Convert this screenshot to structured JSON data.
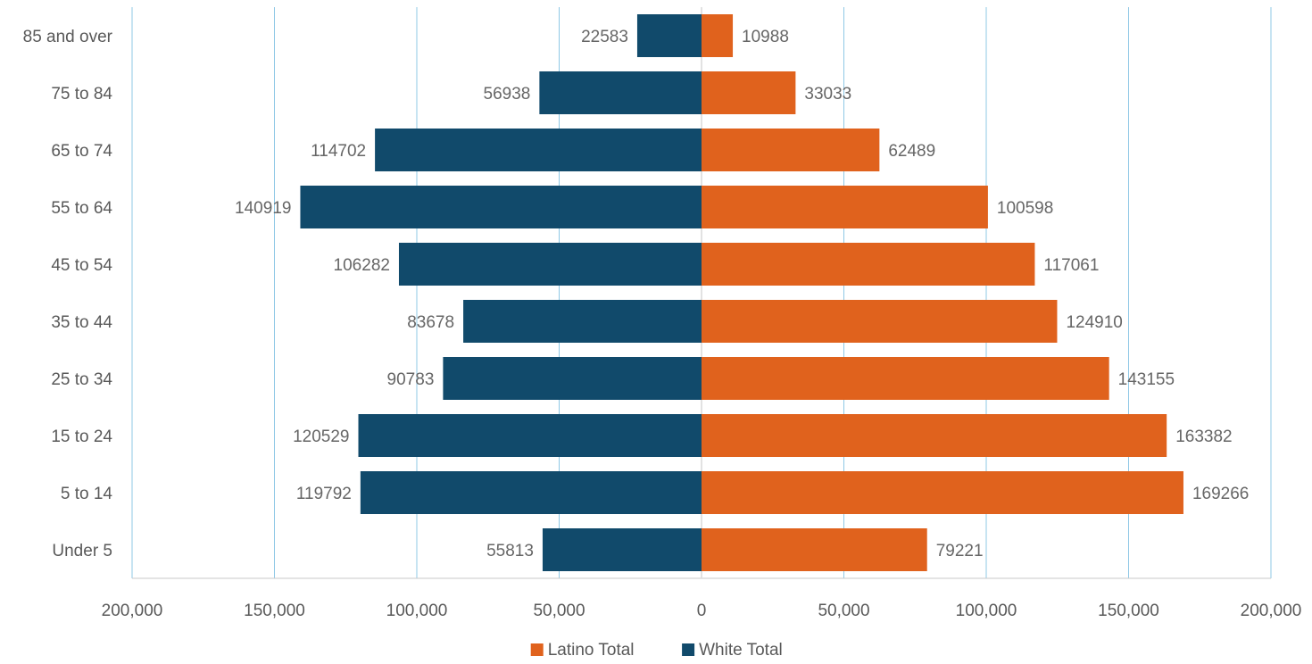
{
  "chart_data": {
    "type": "bar",
    "orientation": "horizontal",
    "categories": [
      "85 and over",
      "75 to 84",
      "65 to 74",
      "55 to 64",
      "45 to 54",
      "35 to 44",
      "25 to 34",
      "15 to 24",
      "5 to 14",
      "Under 5"
    ],
    "series": [
      {
        "name": "White Total",
        "side": "left",
        "color": "#114a6b",
        "values": [
          22583,
          56938,
          114702,
          140919,
          106282,
          83678,
          90783,
          120529,
          119792,
          55813
        ],
        "labels": [
          "22583",
          "56938",
          "114702",
          "140919",
          "106282",
          "83678",
          "90783",
          "120529",
          "119792",
          "55813"
        ]
      },
      {
        "name": "Latino Total",
        "side": "right",
        "color": "#e0621d",
        "values": [
          10988,
          33033,
          62489,
          100598,
          117061,
          124910,
          143155,
          163382,
          169266,
          79221
        ],
        "labels": [
          "10988",
          "33033",
          "62489",
          "100598",
          "117061",
          "124910",
          "143155",
          "163382",
          "169266",
          "79221"
        ]
      }
    ],
    "x_ticks": [
      -200000,
      -150000,
      -100000,
      -50000,
      0,
      50000,
      100000,
      150000,
      200000
    ],
    "x_tick_labels": [
      "200,000",
      "150,000",
      "100,000",
      "50,000",
      "0",
      "50,000",
      "100,000",
      "150,000",
      "200,000"
    ],
    "xlim": [
      -200000,
      200000
    ],
    "grid": "vertical",
    "legend": {
      "position": "bottom",
      "entries": [
        {
          "label": "Latino Total",
          "color": "#e0621d"
        },
        {
          "label": "White Total",
          "color": "#114a6b"
        }
      ]
    },
    "colors": {
      "grid": "#8fc8e6",
      "axis": "#c8c8c8",
      "text": "#595959",
      "value_label": "#666666"
    }
  }
}
